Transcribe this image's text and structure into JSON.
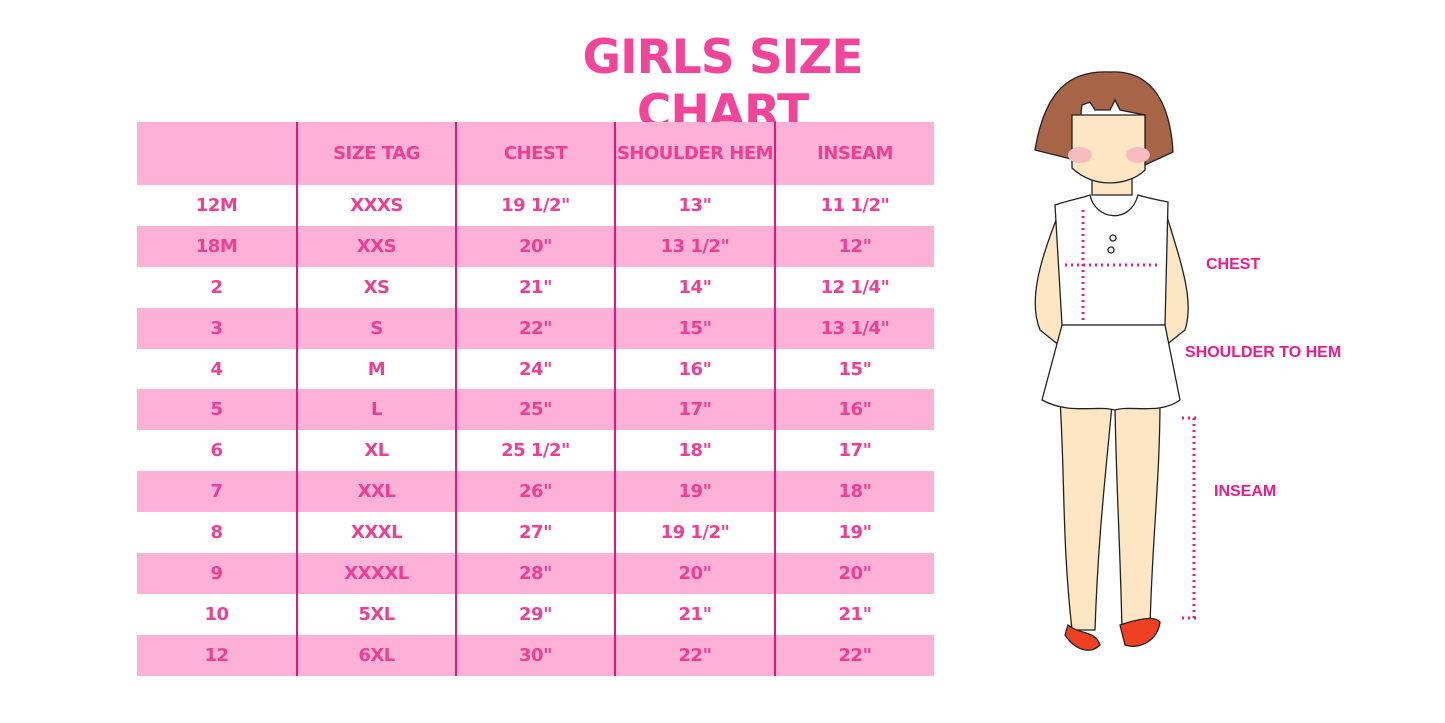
{
  "title": "GIRLS SIZE CHART",
  "table": {
    "headers": [
      "",
      "SIZE TAG",
      "CHEST",
      "SHOULDER HEM",
      "INSEAM"
    ],
    "rows": [
      [
        "12M",
        "XXXS",
        "19 1/2\"",
        "13\"",
        "11 1/2\""
      ],
      [
        "18M",
        "XXS",
        "20\"",
        "13 1/2\"",
        "12\""
      ],
      [
        "2",
        "XS",
        "21\"",
        "14\"",
        "12 1/4\""
      ],
      [
        "3",
        "S",
        "22\"",
        "15\"",
        "13 1/4\""
      ],
      [
        "4",
        "M",
        "24\"",
        "16\"",
        "15\""
      ],
      [
        "5",
        "L",
        "25\"",
        "17\"",
        "16\""
      ],
      [
        "6",
        "XL",
        "25 1/2\"",
        "18\"",
        "17\""
      ],
      [
        "7",
        "XXL",
        "26\"",
        "19\"",
        "18\""
      ],
      [
        "8",
        "XXXL",
        "27\"",
        "19 1/2\"",
        "19\""
      ],
      [
        "9",
        "XXXXL",
        "28\"",
        "20\"",
        "20\""
      ],
      [
        "10",
        "5XL",
        "29\"",
        "21\"",
        "21\""
      ],
      [
        "12",
        "6XL",
        "30\"",
        "22\"",
        "22\""
      ]
    ]
  },
  "diagram": {
    "chest_label": "CHEST",
    "shoulder_label": "SHOULDER TO HEM",
    "inseam_label": "INSEAM"
  },
  "colors": {
    "accent": "#f2459a",
    "row_pink": "#fdb1d6",
    "divider": "#e3157f"
  }
}
